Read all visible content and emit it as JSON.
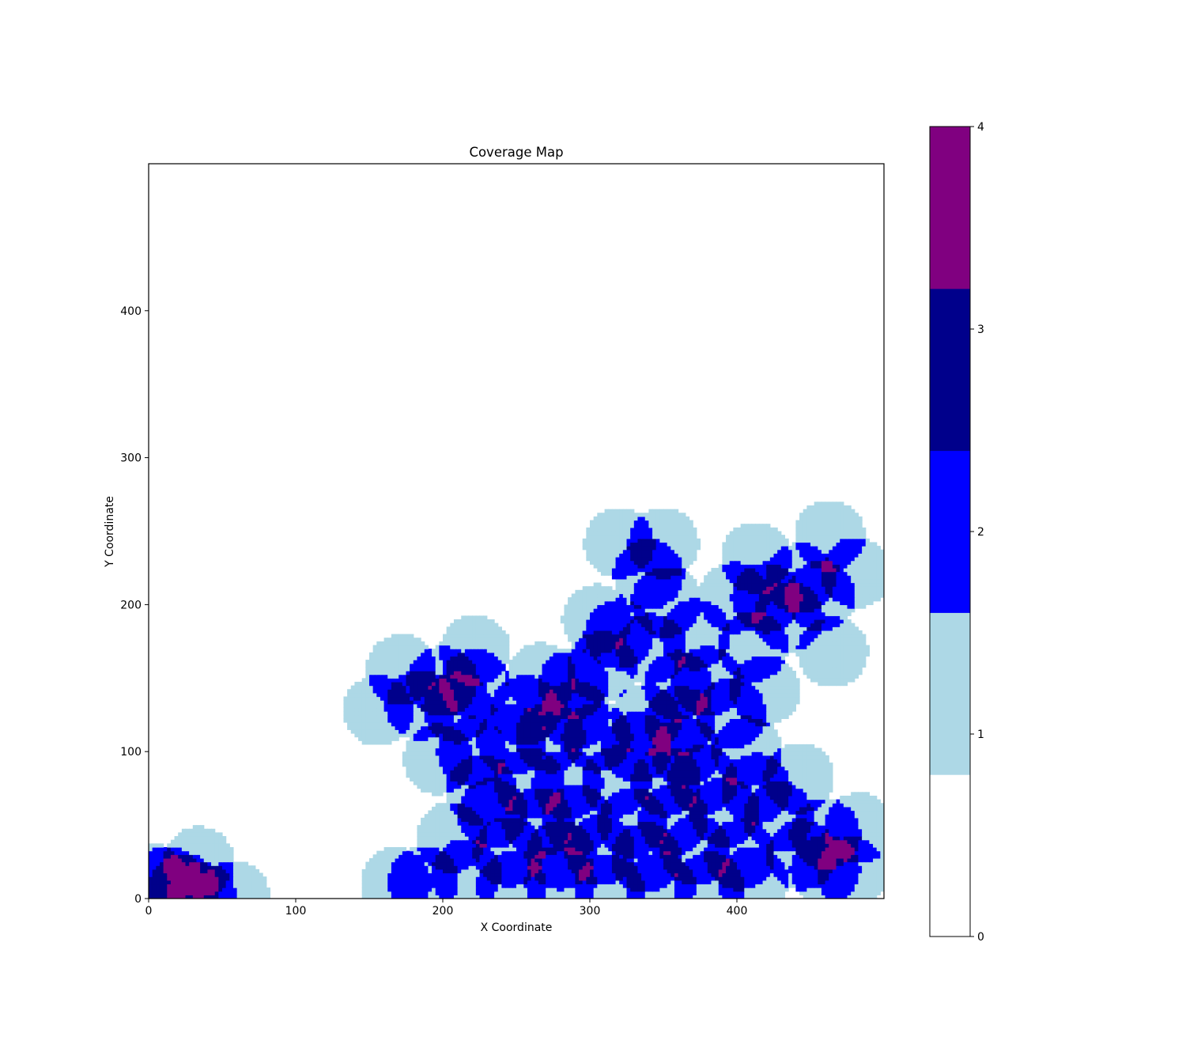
{
  "chart_data": {
    "type": "heatmap",
    "title": "Coverage Map",
    "xlabel": "X Coordinate",
    "ylabel": "Y Coordinate",
    "xlim": [
      0,
      500
    ],
    "ylim": [
      0,
      500
    ],
    "x_ticks": [
      0,
      100,
      200,
      300,
      400
    ],
    "y_ticks": [
      0,
      100,
      200,
      300,
      400
    ],
    "sensor_radius": 24,
    "value_description": "number of overlapping sensor coverage circles per cell",
    "colorbar": {
      "ticks": [
        0,
        1,
        2,
        3,
        4
      ],
      "levels": [
        {
          "value": 0,
          "color": "#ffffff"
        },
        {
          "value": 1,
          "color": "#add8e6"
        },
        {
          "value": 2,
          "color": "#0000ff"
        },
        {
          "value": 3,
          "color": "#00008b"
        },
        {
          "value": 4,
          "color": "#800080"
        }
      ]
    },
    "sensor_centers": [
      [
        320,
        242
      ],
      [
        350,
        242
      ],
      [
        413,
        232
      ],
      [
        463,
        247
      ],
      [
        481,
        222
      ],
      [
        340,
        221
      ],
      [
        443,
        218
      ],
      [
        457,
        206
      ],
      [
        305,
        190
      ],
      [
        352,
        202
      ],
      [
        398,
        205
      ],
      [
        420,
        205
      ],
      [
        435,
        192
      ],
      [
        320,
        180
      ],
      [
        342,
        170
      ],
      [
        372,
        180
      ],
      [
        411,
        172
      ],
      [
        465,
        168
      ],
      [
        172,
        156
      ],
      [
        222,
        169
      ],
      [
        200,
        148
      ],
      [
        222,
        146
      ],
      [
        267,
        150
      ],
      [
        289,
        146
      ],
      [
        308,
        158
      ],
      [
        360,
        145
      ],
      [
        380,
        148
      ],
      [
        419,
        142
      ],
      [
        156,
        128
      ],
      [
        185,
        132
      ],
      [
        210,
        130
      ],
      [
        256,
        128
      ],
      [
        290,
        125
      ],
      [
        338,
        122
      ],
      [
        361,
        121
      ],
      [
        396,
        126
      ],
      [
        197,
        95
      ],
      [
        220,
        100
      ],
      [
        247,
        108
      ],
      [
        273,
        110
      ],
      [
        305,
        110
      ],
      [
        332,
        103
      ],
      [
        365,
        100
      ],
      [
        407,
        100
      ],
      [
        442,
        82
      ],
      [
        226,
        74
      ],
      [
        259,
        79
      ],
      [
        285,
        78
      ],
      [
        318,
        80
      ],
      [
        352,
        80
      ],
      [
        377,
        81
      ],
      [
        413,
        75
      ],
      [
        206,
        42
      ],
      [
        234,
        58
      ],
      [
        265,
        52
      ],
      [
        292,
        54
      ],
      [
        329,
        52
      ],
      [
        357,
        54
      ],
      [
        392,
        59
      ],
      [
        428,
        56
      ],
      [
        483,
        48
      ],
      [
        460,
        44
      ],
      [
        245,
        32
      ],
      [
        280,
        30
      ],
      [
        307,
        33
      ],
      [
        338,
        28
      ],
      [
        372,
        33
      ],
      [
        402,
        30
      ],
      [
        444,
        30
      ],
      [
        187,
        12
      ],
      [
        216,
        17
      ],
      [
        168,
        11
      ],
      [
        247,
        8
      ],
      [
        280,
        12
      ],
      [
        313,
        6
      ],
      [
        348,
        8
      ],
      [
        381,
        8
      ],
      [
        411,
        12
      ],
      [
        460,
        20
      ],
      [
        478,
        18
      ],
      [
        34,
        25
      ],
      [
        58,
        2
      ],
      [
        13,
        12
      ],
      [
        3,
        13
      ],
      [
        24,
        7
      ],
      [
        36,
        1
      ]
    ]
  }
}
